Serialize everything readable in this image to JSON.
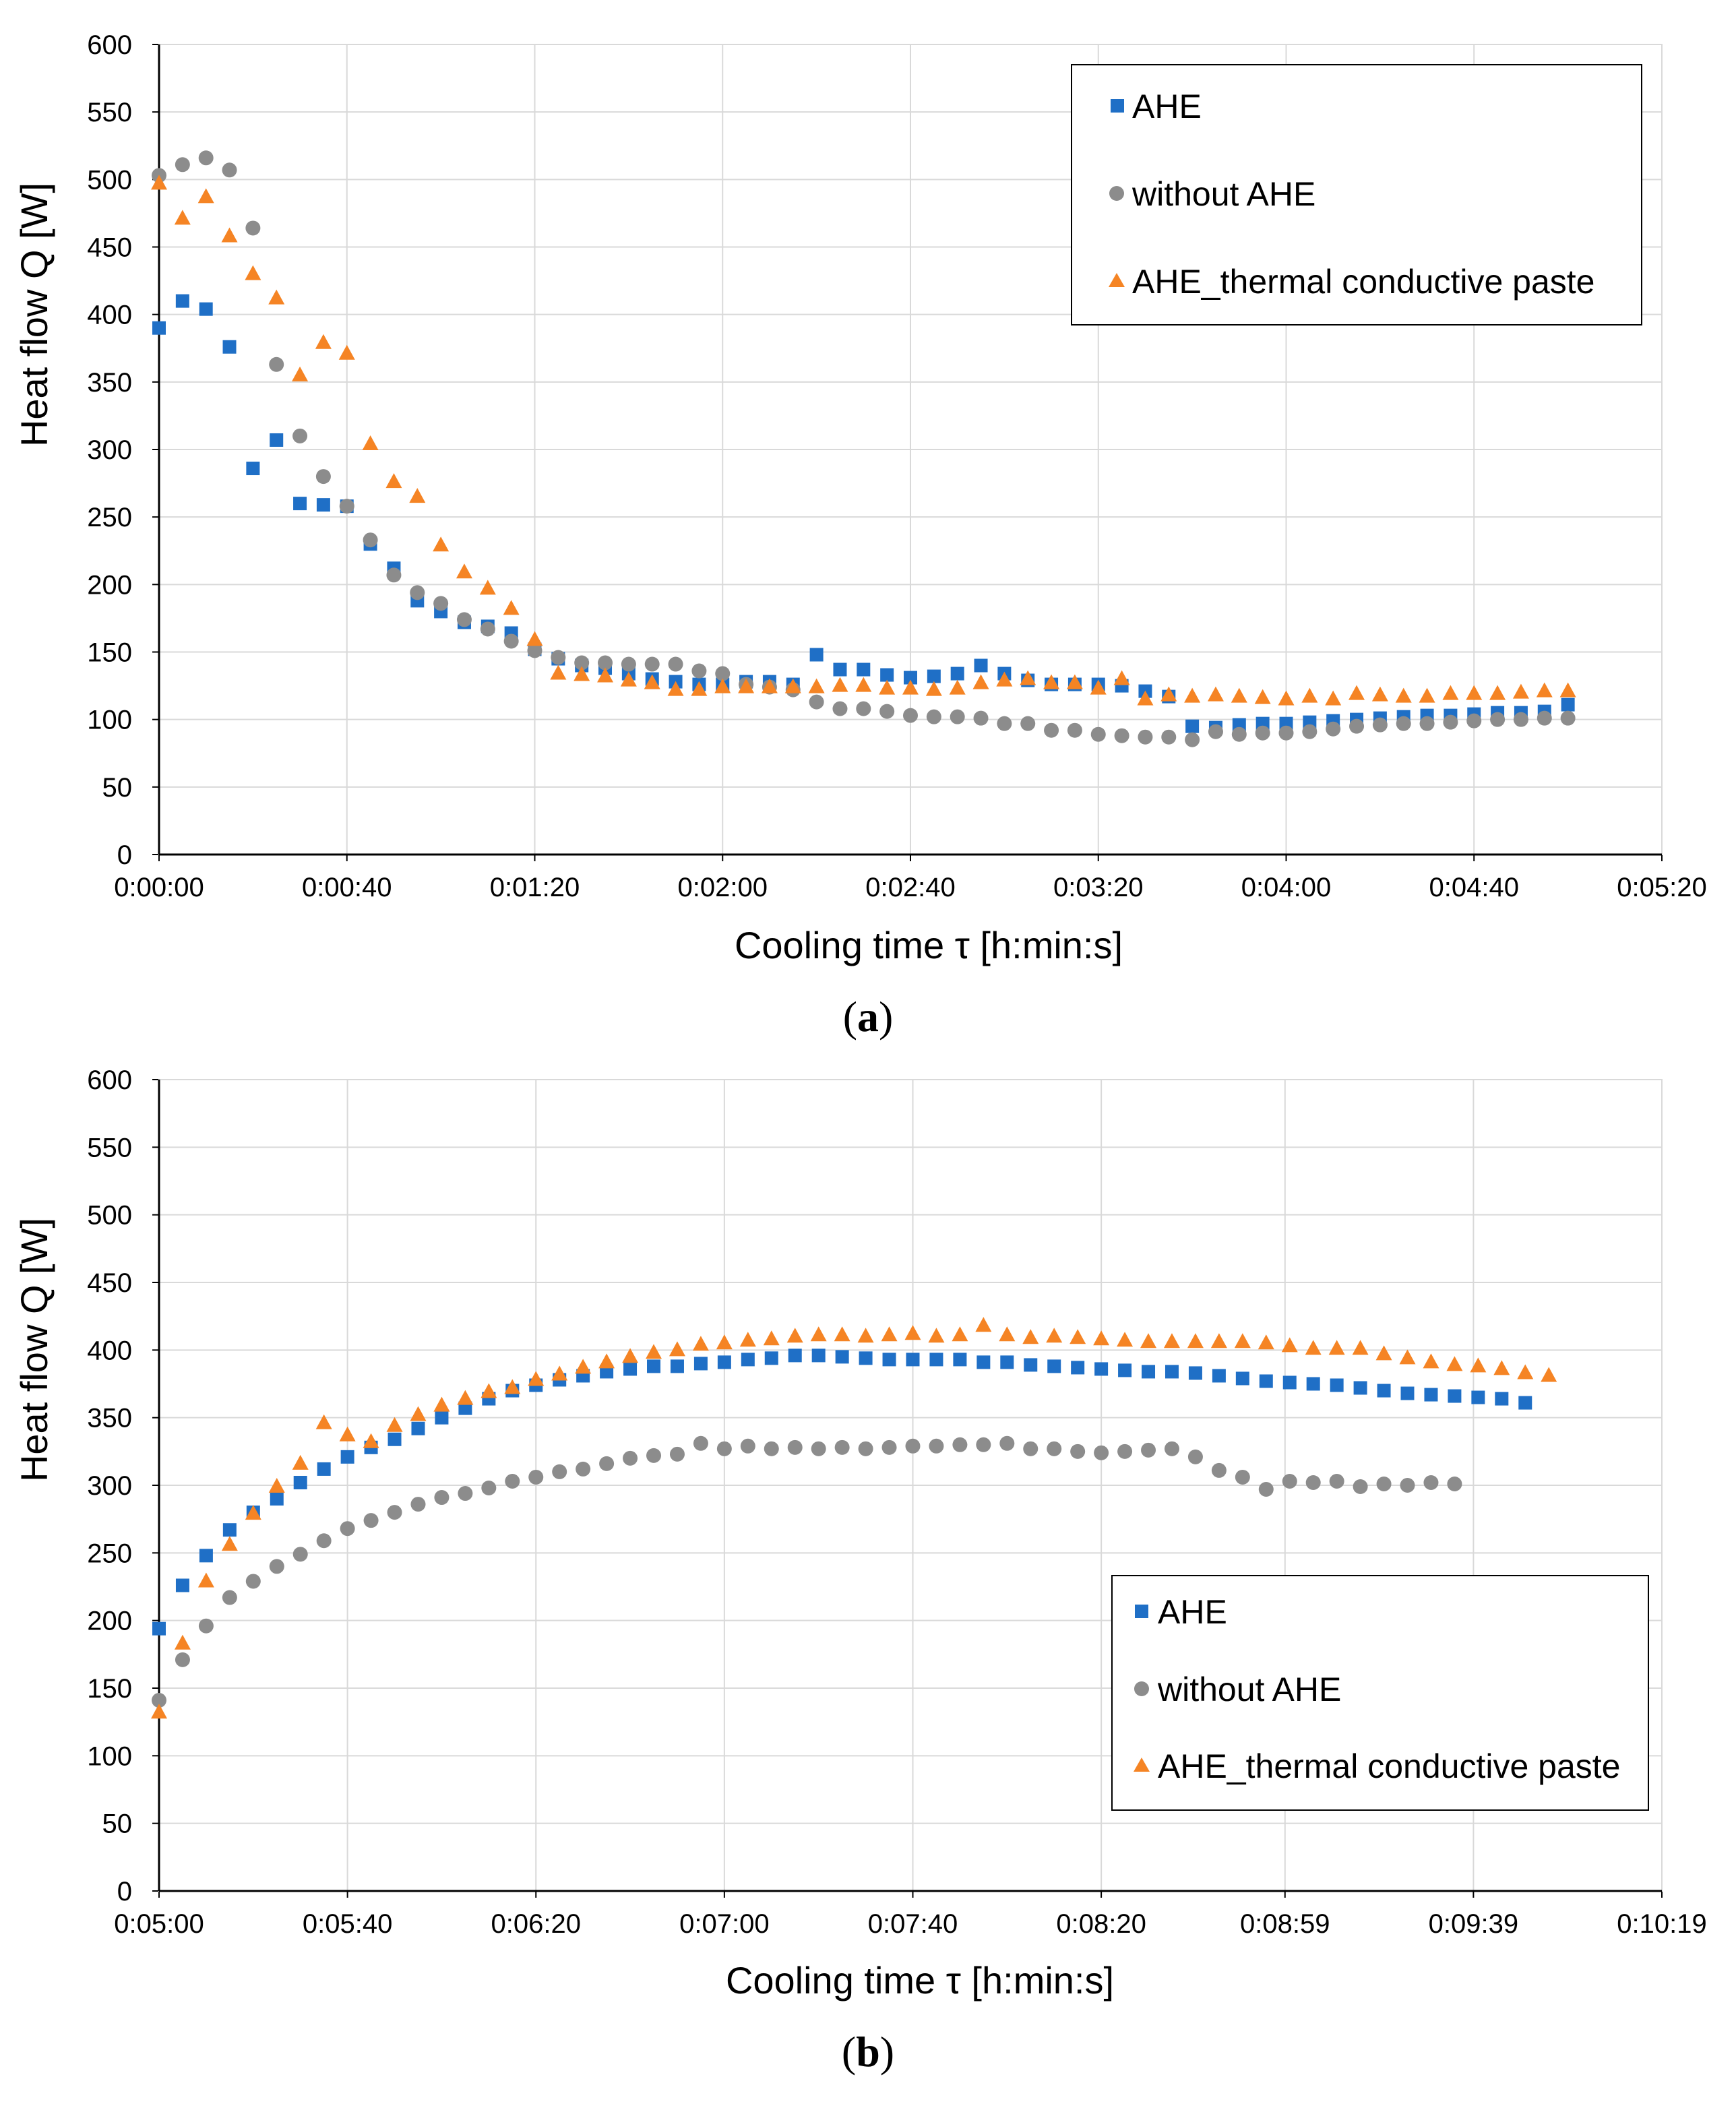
{
  "colors": {
    "AHE": "#1f6fc6",
    "without AHE": "#8c8c8c",
    "AHE_thermal conductive paste": "#f58424",
    "grid": "#d9d9d9",
    "axis": "#000000"
  },
  "chart_data": [
    {
      "type": "scatter",
      "caption_label": "a",
      "xlabel": "Cooling time τ [h:min:s]",
      "ylabel": "Heat flow Q [W]",
      "ylim": [
        0,
        600
      ],
      "yticks": [
        0,
        50,
        100,
        150,
        200,
        250,
        300,
        350,
        400,
        450,
        500,
        550,
        600
      ],
      "xlim": [
        0,
        320
      ],
      "xticks": [
        0,
        40,
        80,
        120,
        160,
        200,
        240,
        280,
        320
      ],
      "xtick_labels": [
        "0:00:00",
        "0:00:40",
        "0:01:20",
        "0:02:00",
        "0:02:40",
        "0:03:20",
        "0:04:00",
        "0:04:40",
        "0:05:20"
      ],
      "grid": true,
      "legend_position": "top-right",
      "x_start": 0,
      "x_step": 5,
      "series": [
        {
          "name": "AHE",
          "marker": "square",
          "values": [
            390,
            410,
            404,
            376,
            286,
            307,
            260,
            259,
            258,
            230,
            212,
            188,
            180,
            172,
            169,
            164,
            152,
            145,
            140,
            138,
            134,
            130,
            128,
            126,
            126,
            128,
            128,
            126,
            148,
            137,
            137,
            133,
            131,
            132,
            134,
            140,
            134,
            129,
            126,
            126,
            126,
            125,
            121,
            117,
            95,
            94,
            96,
            97,
            97,
            98,
            99,
            100,
            101,
            102,
            103,
            103,
            104,
            105,
            105,
            106,
            111
          ]
        },
        {
          "name": "without AHE",
          "marker": "circle",
          "values": [
            503,
            511,
            516,
            507,
            464,
            363,
            310,
            280,
            258,
            233,
            207,
            194,
            186,
            174,
            167,
            158,
            151,
            146,
            142,
            142,
            141,
            141,
            141,
            136,
            134,
            126,
            124,
            122,
            113,
            108,
            108,
            106,
            103,
            102,
            102,
            101,
            97,
            97,
            92,
            92,
            89,
            88,
            87,
            87,
            85,
            91,
            89,
            90,
            90,
            91,
            93,
            95,
            96,
            97,
            97,
            98,
            99,
            100,
            100,
            101,
            101
          ]
        },
        {
          "name": "AHE_thermal conductive paste",
          "marker": "triangle",
          "values": [
            497,
            471,
            487,
            458,
            430,
            412,
            355,
            379,
            371,
            304,
            276,
            265,
            229,
            209,
            197,
            182,
            159,
            134,
            133,
            132,
            129,
            127,
            122,
            122,
            124,
            124,
            124,
            124,
            124,
            125,
            125,
            123,
            123,
            122,
            123,
            127,
            129,
            130,
            127,
            127,
            123,
            130,
            115,
            118,
            117,
            118,
            117,
            116,
            115,
            117,
            115,
            119,
            118,
            117,
            117,
            119,
            119,
            119,
            120,
            121,
            121
          ]
        }
      ],
      "legend": [
        "AHE",
        "without AHE",
        "AHE_thermal conductive paste"
      ]
    },
    {
      "type": "scatter",
      "caption_label": "b",
      "xlabel": "Cooling time τ [h:min:s]",
      "ylabel": "Heat flow Q [W]",
      "ylim": [
        0,
        600
      ],
      "yticks": [
        0,
        50,
        100,
        150,
        200,
        250,
        300,
        350,
        400,
        450,
        500,
        550,
        600
      ],
      "xlim": [
        300,
        619
      ],
      "xticks": [
        300,
        340,
        380,
        420,
        460,
        500,
        539,
        579,
        619
      ],
      "xtick_labels": [
        "0:05:00",
        "0:05:40",
        "0:06:20",
        "0:07:00",
        "0:07:40",
        "0:08:20",
        "0:08:59",
        "0:09:39",
        "0:10:19"
      ],
      "grid": true,
      "legend_position": "bottom-right",
      "x_start": 300,
      "x_step": 5,
      "series": [
        {
          "name": "AHE",
          "marker": "square",
          "values": [
            194,
            226,
            248,
            267,
            280,
            290,
            302,
            312,
            321,
            328,
            334,
            342,
            350,
            357,
            364,
            370,
            374,
            378,
            381,
            384,
            386,
            388,
            388,
            390,
            391,
            393,
            394,
            396,
            396,
            395,
            394,
            393,
            393,
            393,
            393,
            391,
            391,
            389,
            388,
            387,
            386,
            385,
            384,
            384,
            383,
            381,
            379,
            377,
            376,
            375,
            374,
            372,
            370,
            368,
            367,
            366,
            365,
            364,
            361
          ]
        },
        {
          "name": "without AHE",
          "marker": "circle",
          "values": [
            141,
            171,
            196,
            217,
            229,
            240,
            249,
            259,
            268,
            274,
            280,
            286,
            291,
            294,
            298,
            303,
            306,
            310,
            312,
            316,
            320,
            322,
            323,
            331,
            327,
            329,
            327,
            328,
            327,
            328,
            327,
            328,
            329,
            329,
            330,
            330,
            331,
            327,
            327,
            325,
            324,
            325,
            326,
            327,
            321,
            311,
            306,
            297,
            303,
            302,
            303,
            299,
            301,
            300,
            302,
            301
          ]
        },
        {
          "name": "AHE_thermal conductive paste",
          "marker": "triangle",
          "values": [
            132,
            183,
            229,
            256,
            279,
            299,
            316,
            346,
            337,
            332,
            344,
            352,
            359,
            364,
            369,
            372,
            378,
            382,
            387,
            391,
            395,
            398,
            400,
            404,
            405,
            407,
            408,
            410,
            411,
            411,
            410,
            411,
            412,
            410,
            411,
            418,
            411,
            409,
            410,
            409,
            408,
            407,
            406,
            406,
            406,
            406,
            406,
            405,
            403,
            401,
            401,
            401,
            397,
            394,
            391,
            389,
            388,
            386,
            383,
            381
          ]
        }
      ],
      "legend": [
        "AHE",
        "without AHE",
        "AHE_thermal conductive paste"
      ]
    }
  ]
}
